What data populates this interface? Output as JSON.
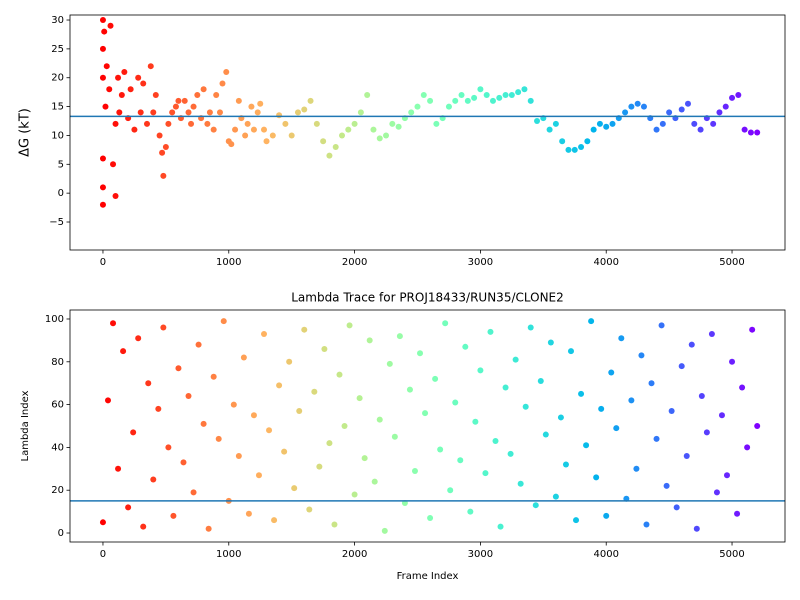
{
  "chart_data": [
    {
      "type": "scatter",
      "ylabel": "ΔG (kT)",
      "colormap": "rainbow_r",
      "xlim": [
        -262,
        5421
      ],
      "ylim": [
        -9.85,
        30.87
      ],
      "xticks": [
        0,
        1000,
        2000,
        3000,
        4000,
        5000
      ],
      "yticks": [
        {
          "value": -5,
          "label": "−5"
        },
        0,
        5,
        10,
        15,
        20,
        25,
        30
      ],
      "hline": 13.3,
      "hline_color": "#1f77b4",
      "x": [
        0,
        0,
        0,
        0,
        0,
        0,
        10,
        20,
        30,
        50,
        60,
        80,
        100,
        100,
        120,
        130,
        150,
        170,
        200,
        220,
        250,
        280,
        300,
        320,
        350,
        380,
        400,
        420,
        450,
        470,
        480,
        500,
        520,
        550,
        580,
        600,
        620,
        650,
        680,
        700,
        720,
        750,
        780,
        800,
        830,
        850,
        880,
        900,
        930,
        950,
        980,
        1000,
        1020,
        1050,
        1080,
        1100,
        1130,
        1150,
        1180,
        1200,
        1230,
        1250,
        1280,
        1300,
        1350,
        1400,
        1450,
        1500,
        1550,
        1600,
        1650,
        1700,
        1750,
        1800,
        1850,
        1900,
        1950,
        2000,
        2050,
        2100,
        2150,
        2200,
        2250,
        2300,
        2350,
        2400,
        2450,
        2500,
        2550,
        2600,
        2650,
        2700,
        2750,
        2800,
        2850,
        2900,
        2950,
        3000,
        3050,
        3100,
        3150,
        3200,
        3250,
        3300,
        3350,
        3400,
        3450,
        3500,
        3550,
        3600,
        3650,
        3700,
        3750,
        3800,
        3850,
        3900,
        3950,
        4000,
        4050,
        4100,
        4150,
        4200,
        4250,
        4300,
        4350,
        4400,
        4450,
        4500,
        4550,
        4600,
        4650,
        4700,
        4750,
        4800,
        4850,
        4900,
        4950,
        5000,
        5050,
        5100,
        5150,
        5200
      ],
      "values": [
        30,
        20,
        6,
        -2,
        1,
        25,
        28,
        15,
        22,
        18,
        29,
        5,
        -0.5,
        12,
        20,
        14,
        17,
        21,
        13,
        18,
        11,
        20,
        14,
        19,
        12,
        22,
        14,
        17,
        10,
        7,
        3,
        8,
        12,
        14,
        15,
        16,
        13,
        16,
        14,
        12,
        15,
        17,
        13,
        18,
        12,
        14,
        11,
        17,
        14,
        19,
        21,
        9,
        8.5,
        11,
        16,
        13,
        10,
        12,
        15,
        11,
        14,
        15.5,
        11,
        9,
        10,
        13.5,
        12,
        10,
        14,
        14.5,
        16,
        12,
        9,
        6.5,
        8,
        10,
        11,
        12,
        14,
        17,
        11,
        9.5,
        10,
        12,
        11.5,
        13,
        14,
        15,
        17,
        16,
        12,
        13,
        15,
        16,
        17,
        16,
        16.5,
        18,
        17,
        16,
        16.5,
        17,
        17,
        17.5,
        18,
        16,
        12.5,
        13,
        11,
        12,
        9,
        7.5,
        7.5,
        8,
        9,
        11,
        12,
        11.5,
        12,
        13,
        14,
        15,
        15.5,
        15,
        13,
        11,
        12,
        14,
        13,
        14.5,
        15.5,
        12,
        11,
        13,
        12,
        14,
        15,
        16.5,
        17,
        11,
        10.5,
        10.5
      ]
    },
    {
      "type": "scatter",
      "title": "Lambda Trace for PROJ18433/RUN35/CLONE2",
      "xlabel": "Frame Index",
      "ylabel": "Lambda Index",
      "colormap": "rainbow_r",
      "xlim": [
        -262,
        5421
      ],
      "ylim": [
        -4.2,
        104.2
      ],
      "xticks": [
        0,
        1000,
        2000,
        3000,
        4000,
        5000
      ],
      "yticks": [
        0,
        20,
        40,
        60,
        80,
        100
      ],
      "hline": 15,
      "hline_color": "#1f77b4",
      "x": [
        0,
        40,
        80,
        120,
        160,
        200,
        240,
        280,
        320,
        360,
        400,
        440,
        480,
        520,
        560,
        600,
        640,
        680,
        720,
        760,
        800,
        840,
        880,
        920,
        960,
        1000,
        1040,
        1080,
        1120,
        1160,
        1200,
        1240,
        1280,
        1320,
        1360,
        1400,
        1440,
        1480,
        1520,
        1560,
        1600,
        1640,
        1680,
        1720,
        1760,
        1800,
        1840,
        1880,
        1920,
        1960,
        2000,
        2040,
        2080,
        2120,
        2160,
        2200,
        2240,
        2280,
        2320,
        2360,
        2400,
        2440,
        2480,
        2520,
        2560,
        2600,
        2640,
        2680,
        2720,
        2760,
        2800,
        2840,
        2880,
        2920,
        2960,
        3000,
        3040,
        3080,
        3120,
        3160,
        3200,
        3240,
        3280,
        3320,
        3360,
        3400,
        3440,
        3480,
        3520,
        3560,
        3600,
        3640,
        3680,
        3720,
        3760,
        3800,
        3840,
        3880,
        3920,
        3960,
        4000,
        4040,
        4080,
        4120,
        4160,
        4200,
        4240,
        4280,
        4320,
        4360,
        4400,
        4440,
        4480,
        4520,
        4560,
        4600,
        4640,
        4680,
        4720,
        4760,
        4800,
        4840,
        4880,
        4920,
        4960,
        5000,
        5040,
        5080,
        5120,
        5160,
        5200
      ],
      "values": [
        5,
        62,
        98,
        30,
        85,
        12,
        47,
        91,
        3,
        70,
        25,
        58,
        96,
        40,
        8,
        77,
        33,
        64,
        19,
        88,
        51,
        2,
        73,
        44,
        99,
        15,
        60,
        36,
        82,
        9,
        55,
        27,
        93,
        48,
        6,
        69,
        38,
        80,
        21,
        57,
        95,
        11,
        66,
        31,
        86,
        42,
        4,
        74,
        50,
        97,
        18,
        63,
        35,
        90,
        24,
        53,
        1,
        79,
        45,
        92,
        14,
        67,
        29,
        84,
        56,
        7,
        72,
        39,
        98,
        20,
        61,
        34,
        87,
        10,
        52,
        76,
        28,
        94,
        43,
        3,
        68,
        37,
        81,
        23,
        59,
        96,
        13,
        71,
        46,
        89,
        17,
        54,
        32,
        85,
        6,
        65,
        41,
        99,
        26,
        58,
        8,
        75,
        49,
        91,
        16,
        62,
        30,
        83,
        4,
        70,
        44,
        97,
        22,
        57,
        12,
        78,
        36,
        88,
        2,
        64,
        47,
        93,
        19,
        55,
        27,
        80,
        9,
        68,
        40,
        95,
        50
      ]
    }
  ]
}
